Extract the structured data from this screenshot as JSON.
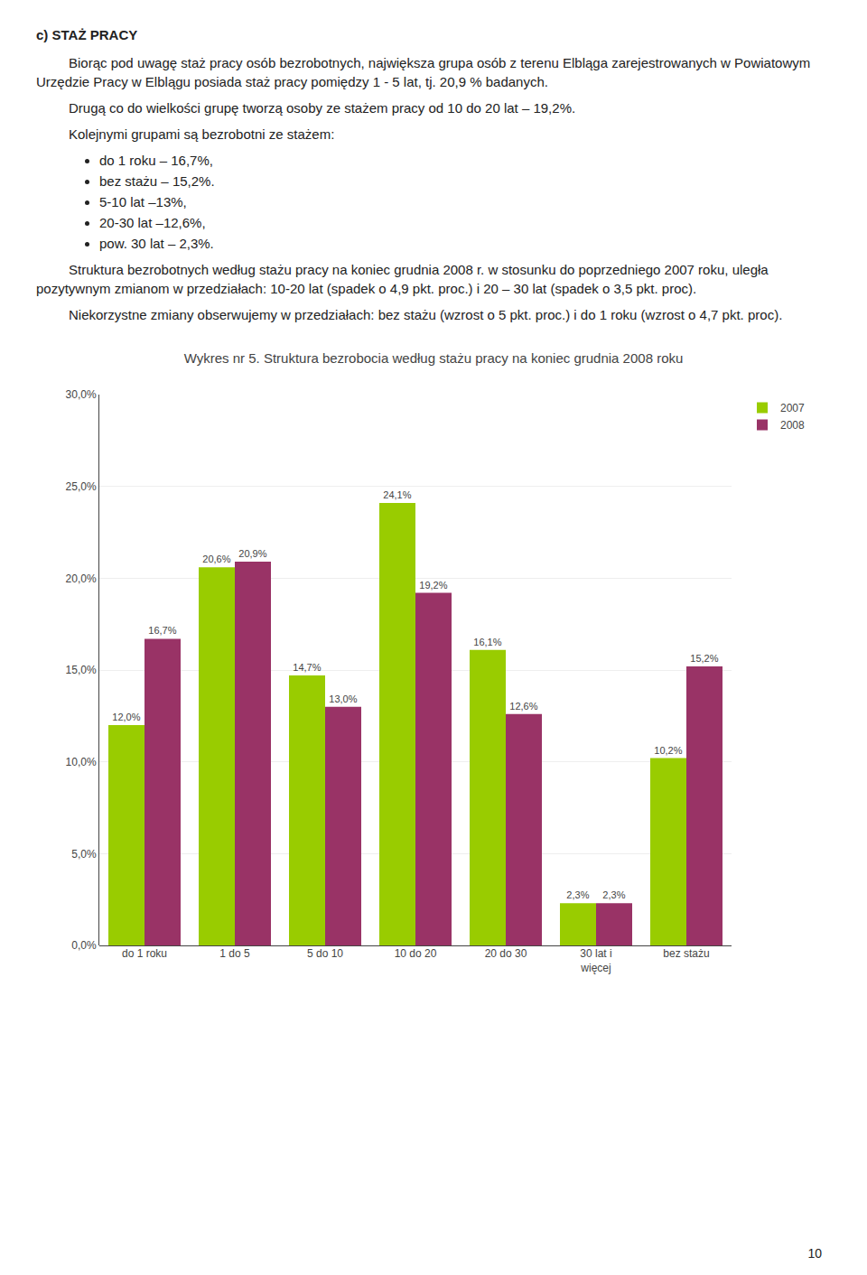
{
  "chart_data": {
    "type": "bar",
    "title": "Wykres nr 5. Struktura bezrobocia według stażu pracy na koniec grudnia 2008 roku",
    "annotations": [
      "c) STAŻ PRACY",
      "Biorąc pod uwagę staż pracy osób bezrobotnych, największa grupa osób z terenu Elbląga zarejestrowanych w Powiatowym Urzędzie Pracy w Elblągu posiada staż pracy pomiędzy 1 - 5 lat, tj. 20,9 % badanych.",
      "Drugą co do wielkości grupę tworzą osoby ze stażem pracy od 10 do 20 lat – 19,2%.",
      "Kolejnymi grupami są bezrobotni ze stażem:",
      "do 1 roku – 16,7%,",
      "bez stażu – 15,2%.",
      "5-10 lat  –13%,",
      "20-30 lat –12,6%,",
      "pow. 30 lat – 2,3%.",
      "Struktura bezrobotnych według stażu pracy na koniec grudnia 2008 r. w stosunku do poprzedniego 2007 roku, uległa pozytywnym zmianom w przedziałach:  10-20 lat  (spadek o 4,9 pkt. proc.) i 20 – 30 lat (spadek o 3,5 pkt. proc).",
      "Niekorzystne zmiany obserwujemy w przedziałach: bez stażu (wzrost o 5 pkt. proc.) i do 1 roku (wzrost o 4,7 pkt. proc).",
      "10"
    ],
    "categories": [
      "do 1 roku",
      "1 do 5",
      "5 do 10",
      "10 do 20",
      "20 do 30",
      "30 lat i\nwięcej",
      "bez stażu"
    ],
    "series": [
      {
        "name": "2007",
        "color": "#99cc00",
        "values": [
          12.0,
          20.6,
          14.7,
          24.1,
          16.1,
          2.3,
          10.2
        ],
        "value_labels": [
          "12,0%",
          "20,6%",
          "14,7%",
          "24,1%",
          "16,1%",
          "2,3%",
          "10,2%"
        ]
      },
      {
        "name": "2008",
        "color": "#993366",
        "values": [
          16.7,
          20.9,
          13.0,
          19.2,
          12.6,
          2.3,
          15.2
        ],
        "value_labels": [
          "16,7%",
          "20,9%",
          "13,0%",
          "19,2%",
          "12,6%",
          "2,3%",
          "15,2%"
        ]
      }
    ],
    "ylim": [
      0,
      30
    ],
    "yticks": [
      {
        "value": 0,
        "label": "0,0%"
      },
      {
        "value": 5,
        "label": "5,0%"
      },
      {
        "value": 10,
        "label": "10,0%"
      },
      {
        "value": 15,
        "label": "15,0%"
      },
      {
        "value": 20,
        "label": "20,0%"
      },
      {
        "value": 25,
        "label": "25,0%"
      },
      {
        "value": 30,
        "label": "30,0%"
      }
    ],
    "grid": true,
    "legend": "upper right",
    "data_labels": true
  }
}
